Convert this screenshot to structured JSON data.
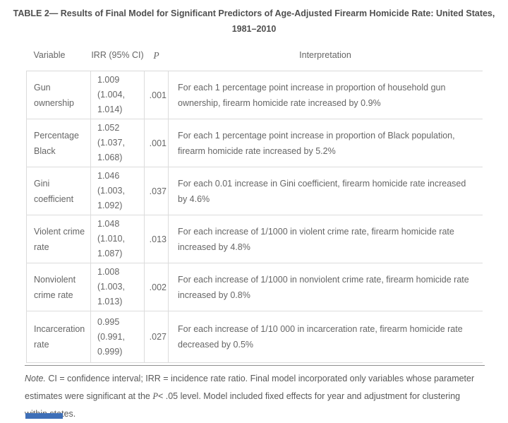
{
  "title": "TABLE 2— Results of Final Model for Significant Predictors of Age-Adjusted Firearm Homicide Rate: United States, 1981–2010",
  "table": {
    "columns": {
      "variable": "Variable",
      "irr": "IRR (95% CI)",
      "p": "P",
      "interpretation": "Interpretation"
    },
    "rows": [
      {
        "variable": "Gun ownership",
        "irr": "1.009\n(1.004,\n1.014)",
        "p": ".001",
        "interpretation": "For each 1 percentage point increase in proportion of household gun ownership, firearm homicide rate increased by 0.9%"
      },
      {
        "variable": "Percentage Black",
        "irr": "1.052\n(1.037,\n1.068)",
        "p": ".001",
        "interpretation": "For each 1 percentage point increase in proportion of Black population, firearm homicide rate increased by 5.2%"
      },
      {
        "variable": "Gini coefficient",
        "irr": "1.046\n(1.003,\n1.092)",
        "p": ".037",
        "interpretation": "For each 0.01 increase in Gini coefficient, firearm homicide rate increased by 4.6%"
      },
      {
        "variable": "Violent crime rate",
        "irr": "1.048\n(1.010,\n1.087)",
        "p": ".013",
        "interpretation": "For each increase of 1/1000 in violent crime rate, firearm homicide rate increased by 4.8%"
      },
      {
        "variable": "Nonviolent crime rate",
        "irr": "1.008\n(1.003,\n1.013)",
        "p": ".002",
        "interpretation": "For each increase of 1/1000 in nonviolent crime rate, firearm homicide rate increased by 0.8%"
      },
      {
        "variable": "Incarceration rate",
        "irr": "0.995\n(0.991,\n0.999)",
        "p": ".027",
        "interpretation": "For each increase of 1/10 000 in incarceration rate, firearm homicide rate decreased by 0.5%"
      }
    ]
  },
  "note": {
    "label": "Note.",
    "part1": " CI = confidence interval; IRR = incidence rate ratio. Final model incorporated only variables whose parameter estimates were significant at the ",
    "p_italic": "P",
    "part2": "< .05 level. Model included fixed effects for year and adjustment for clustering within states."
  },
  "colors": {
    "accent_blue": "#3e6fb7",
    "title_text": "#4f4f4f",
    "body_text": "#666666",
    "border": "#dcdcdc",
    "note_rule": "#8f8f8f"
  }
}
